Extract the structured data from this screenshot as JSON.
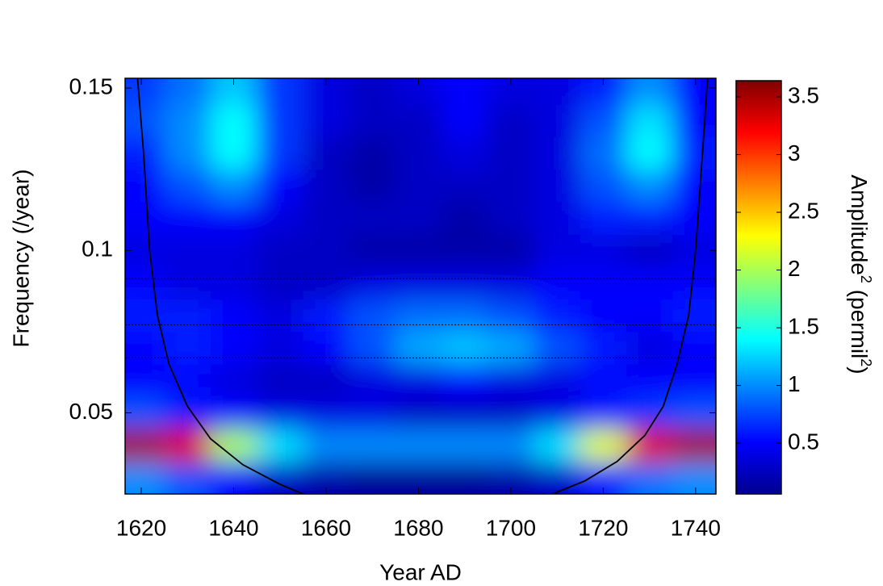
{
  "chart_data": {
    "type": "heatmap",
    "xlabel": "Year AD",
    "ylabel": "Frequency (/year)",
    "x": [
      1620,
      1630,
      1640,
      1650,
      1660,
      1670,
      1680,
      1690,
      1700,
      1710,
      1720,
      1730,
      1740
    ],
    "y": [
      0.03,
      0.04,
      0.05,
      0.06,
      0.07,
      0.08,
      0.09,
      0.1,
      0.11,
      0.12,
      0.13,
      0.14,
      0.15
    ],
    "values": [
      [
        1.0,
        0.8,
        0.5,
        0.3,
        0.2,
        0.15,
        0.15,
        0.15,
        0.2,
        0.3,
        0.6,
        0.9,
        1.0
      ],
      [
        3.5,
        3.3,
        2.0,
        1.3,
        1.0,
        1.0,
        1.0,
        1.0,
        1.0,
        1.3,
        2.2,
        3.3,
        3.5
      ],
      [
        0.8,
        0.6,
        0.5,
        0.4,
        0.4,
        0.4,
        0.3,
        0.3,
        0.3,
        0.4,
        0.6,
        0.7,
        0.8
      ],
      [
        0.5,
        0.5,
        0.4,
        0.3,
        0.3,
        0.4,
        0.4,
        0.5,
        0.4,
        0.4,
        0.5,
        0.5,
        0.5
      ],
      [
        0.5,
        0.6,
        0.5,
        0.4,
        0.5,
        0.8,
        1.1,
        1.2,
        1.1,
        0.8,
        0.6,
        0.4,
        0.5
      ],
      [
        0.6,
        0.6,
        0.5,
        0.4,
        0.6,
        0.8,
        0.9,
        0.9,
        0.8,
        0.6,
        0.5,
        0.5,
        0.6
      ],
      [
        0.5,
        0.4,
        0.4,
        0.3,
        0.3,
        0.4,
        0.4,
        0.4,
        0.4,
        0.5,
        0.5,
        0.5,
        0.5
      ],
      [
        0.4,
        0.4,
        0.4,
        0.3,
        0.3,
        0.2,
        0.2,
        0.2,
        0.2,
        0.4,
        0.4,
        0.3,
        0.4
      ],
      [
        0.5,
        0.5,
        0.5,
        0.4,
        0.3,
        0.3,
        0.3,
        0.2,
        0.3,
        0.4,
        0.6,
        0.6,
        0.5
      ],
      [
        0.5,
        0.8,
        1.0,
        0.5,
        0.3,
        0.2,
        0.3,
        0.3,
        0.3,
        0.4,
        0.8,
        1.0,
        0.5
      ],
      [
        0.6,
        1.0,
        1.4,
        0.7,
        0.3,
        0.2,
        0.3,
        0.4,
        0.3,
        0.4,
        0.9,
        1.4,
        0.6
      ],
      [
        0.8,
        1.0,
        1.4,
        0.7,
        0.4,
        0.3,
        0.3,
        0.5,
        0.3,
        0.4,
        0.8,
        1.3,
        0.5
      ],
      [
        0.7,
        0.9,
        1.2,
        0.7,
        0.4,
        0.3,
        0.4,
        0.5,
        0.4,
        0.4,
        0.6,
        1.0,
        0.5
      ]
    ],
    "xlim": [
      1616.5,
      1744.4
    ],
    "ylim": [
      0.025,
      0.153
    ],
    "xticks": [
      1620,
      1640,
      1660,
      1680,
      1700,
      1720,
      1740
    ],
    "yticks": [
      0.05,
      0.1,
      0.15
    ],
    "colorbar": {
      "lim": [
        0.06,
        3.64
      ],
      "ticks": [
        0.5,
        1,
        1.5,
        2,
        2.5,
        3,
        3.5
      ],
      "label": [
        "Amplitude",
        "2",
        " (permil",
        "2",
        ")"
      ]
    },
    "coi": [
      {
        "x": [
          1619.2,
          1620.5,
          1621.8,
          1623.5,
          1626,
          1630,
          1635,
          1642,
          1650,
          1655
        ],
        "y": [
          0.153,
          0.13,
          0.1,
          0.08,
          0.065,
          0.052,
          0.042,
          0.034,
          0.028,
          0.025
        ]
      },
      {
        "x": [
          1709,
          1716,
          1723,
          1729,
          1733,
          1736,
          1738.5,
          1740,
          1741.5,
          1742.6
        ],
        "y": [
          0.025,
          0.029,
          0.035,
          0.043,
          0.052,
          0.065,
          0.08,
          0.1,
          0.13,
          0.153
        ]
      }
    ],
    "coi_color": "#000000",
    "reference_lines": [
      0.0913,
      0.0771,
      0.0669
    ]
  }
}
